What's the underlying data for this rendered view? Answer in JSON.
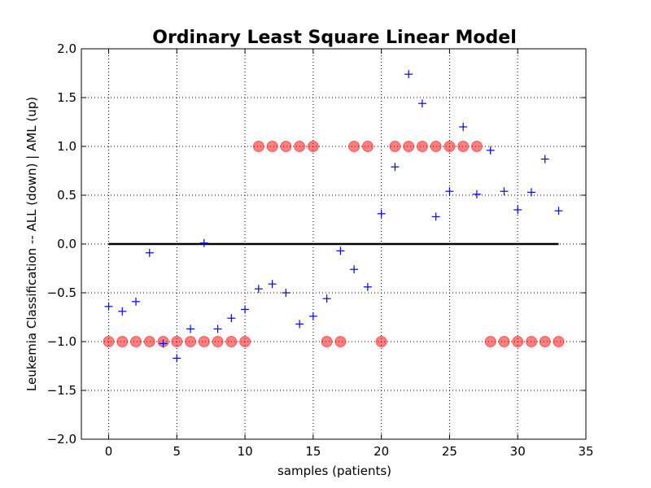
{
  "chart_data": {
    "type": "scatter",
    "title": "Ordinary Least Square Linear Model",
    "xlabel": "samples (patients)",
    "ylabel": "Leukemia Classification -- ALL (down) | AML (up)",
    "xlim": [
      -2,
      35
    ],
    "ylim": [
      -2.0,
      2.0
    ],
    "xticks": [
      0,
      5,
      10,
      15,
      20,
      25,
      30,
      35
    ],
    "xtick_labels": [
      "0",
      "5",
      "10",
      "15",
      "20",
      "25",
      "30",
      "35"
    ],
    "yticks": [
      -2.0,
      -1.5,
      -1.0,
      -0.5,
      0.0,
      0.5,
      1.0,
      1.5,
      2.0
    ],
    "ytick_labels": [
      "−2.0",
      "−1.5",
      "−1.0",
      "−0.5",
      "0.0",
      "0.5",
      "1.0",
      "1.5",
      "2.0"
    ],
    "grid": true,
    "series": [
      {
        "marker": "circle",
        "color": "#ff0000",
        "x": [
          0,
          1,
          2,
          3,
          4,
          5,
          6,
          7,
          8,
          9,
          10,
          11,
          12,
          13,
          14,
          15,
          16,
          17,
          18,
          19,
          20,
          21,
          22,
          23,
          24,
          25,
          26,
          27,
          28,
          29,
          30,
          31,
          32,
          33
        ],
        "values": [
          -1,
          -1,
          -1,
          -1,
          -1,
          -1,
          -1,
          -1,
          -1,
          -1,
          -1,
          1,
          1,
          1,
          1,
          1,
          -1,
          -1,
          1,
          1,
          -1,
          1,
          1,
          1,
          1,
          1,
          1,
          1,
          -1,
          -1,
          -1,
          -1,
          -1,
          -1
        ]
      },
      {
        "marker": "plus",
        "color": "#0000ff",
        "x": [
          0,
          1,
          2,
          3,
          4,
          5,
          6,
          7,
          8,
          9,
          10,
          11,
          12,
          13,
          14,
          15,
          16,
          17,
          18,
          19,
          20,
          21,
          22,
          23,
          24,
          25,
          26,
          27,
          28,
          29,
          30,
          31,
          32,
          33
        ],
        "values": [
          -0.64,
          -0.69,
          -0.59,
          -0.09,
          -1.02,
          -1.17,
          -0.87,
          0.01,
          -0.87,
          -0.76,
          -0.67,
          -0.46,
          -0.41,
          -0.5,
          -0.82,
          -0.74,
          -0.56,
          -0.07,
          -0.26,
          -0.44,
          0.31,
          0.79,
          1.74,
          1.44,
          0.28,
          0.54,
          1.2,
          0.51,
          0.96,
          0.54,
          0.35,
          0.53,
          0.87,
          0.34
        ]
      }
    ],
    "reference_line": {
      "x": [
        0,
        33
      ],
      "y": [
        0,
        0
      ],
      "color": "#000000"
    }
  }
}
